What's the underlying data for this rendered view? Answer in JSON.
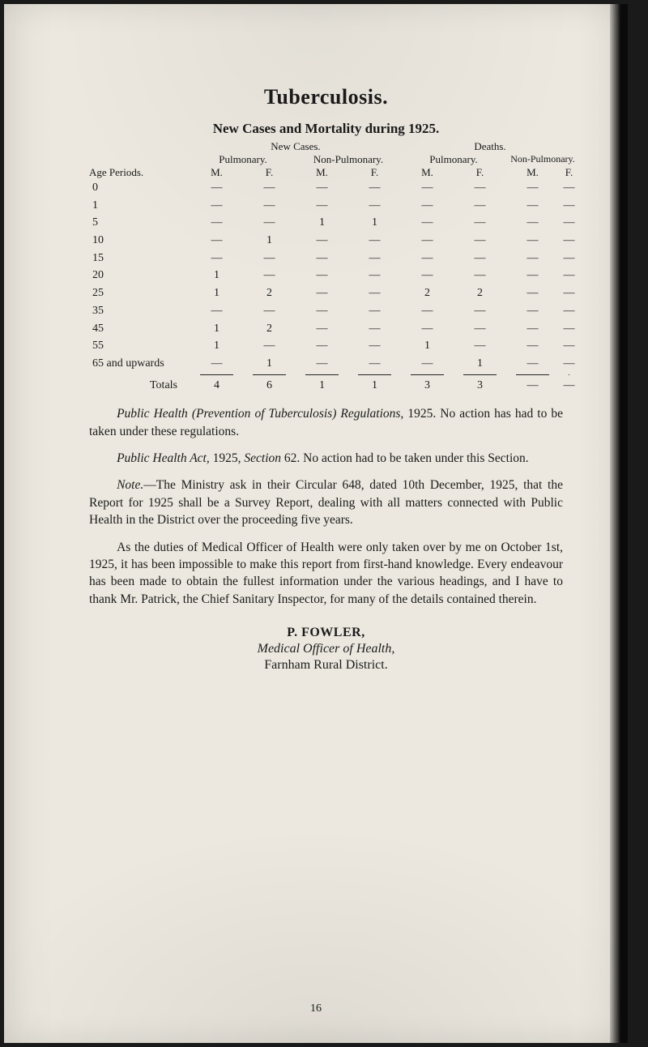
{
  "title": "Tuberculosis.",
  "subtitle": "New Cases and Mortality during 1925.",
  "table": {
    "group_header_left": "New Cases.",
    "group_header_right": "Deaths.",
    "sub_headers": [
      "Pulmonary.",
      "Non-Pulmonary.",
      "Pulmonary.",
      "Non-Pulmonary."
    ],
    "col_label": "Age Periods.",
    "mf": [
      "M.",
      "F.",
      "M.",
      "F.",
      "M.",
      "F.",
      "M.",
      "F."
    ],
    "rows": [
      {
        "label": "0",
        "cells": [
          "—",
          "—",
          "—",
          "—",
          "—",
          "—",
          "—",
          "—"
        ]
      },
      {
        "label": "1",
        "cells": [
          "—",
          "—",
          "—",
          "—",
          "—",
          "—",
          "—",
          "—"
        ]
      },
      {
        "label": "5",
        "cells": [
          "—",
          "—",
          "1",
          "1",
          "—",
          "—",
          "—",
          "—"
        ]
      },
      {
        "label": "10",
        "cells": [
          "—",
          "1",
          "—",
          "—",
          "—",
          "—",
          "—",
          "—"
        ]
      },
      {
        "label": "15",
        "cells": [
          "—",
          "—",
          "—",
          "—",
          "—",
          "—",
          "—",
          "—"
        ]
      },
      {
        "label": "20",
        "cells": [
          "1",
          "—",
          "—",
          "—",
          "—",
          "—",
          "—",
          "—"
        ]
      },
      {
        "label": "25",
        "cells": [
          "1",
          "2",
          "—",
          "—",
          "2",
          "2",
          "—",
          "—"
        ]
      },
      {
        "label": "35",
        "cells": [
          "—",
          "—",
          "—",
          "—",
          "—",
          "—",
          "—",
          "—"
        ]
      },
      {
        "label": "45",
        "cells": [
          "1",
          "2",
          "—",
          "—",
          "—",
          "—",
          "—",
          "—"
        ]
      },
      {
        "label": "55",
        "cells": [
          "1",
          "—",
          "—",
          "—",
          "1",
          "—",
          "—",
          "—"
        ]
      },
      {
        "label": "65 and upwards",
        "cells": [
          "—",
          "1",
          "—",
          "—",
          "—",
          "1",
          "—",
          "—"
        ]
      }
    ],
    "totals_label": "Totals",
    "totals": [
      "4",
      "6",
      "1",
      "1",
      "3",
      "3",
      "—",
      "—"
    ]
  },
  "paragraphs": {
    "p1_a": "Public Health (Prevention of Tuberculosis) Regulations,",
    "p1_b": " 1925. No action has had to be taken under these regulations.",
    "p2_a": "Public Health Act,",
    "p2_b": " 1925, ",
    "p2_c": "Section",
    "p2_d": " 62. No action had to be taken under this Section.",
    "p3_a": "Note.",
    "p3_b": "—The Ministry ask in their Circular 648, dated 10th December, 1925, that the Report for 1925 shall be a Survey Re­port, dealing with all matters connected with Public Health in the District over the proceeding five years.",
    "p4": "As the duties of Medical Officer of Health were only taken over by me on October 1st, 1925, it has been impossible to make this report from first-hand knowledge. Every endeavour has been made to obtain the fullest information under the various headings, and I have to thank Mr. Patrick, the Chief Sanitary Inspector, for many of the details contained therein."
  },
  "signature": {
    "name": "P. FOWLER,",
    "title": "Medical Officer of Health,",
    "location": "Farnham Rural District."
  },
  "page_number": "16"
}
